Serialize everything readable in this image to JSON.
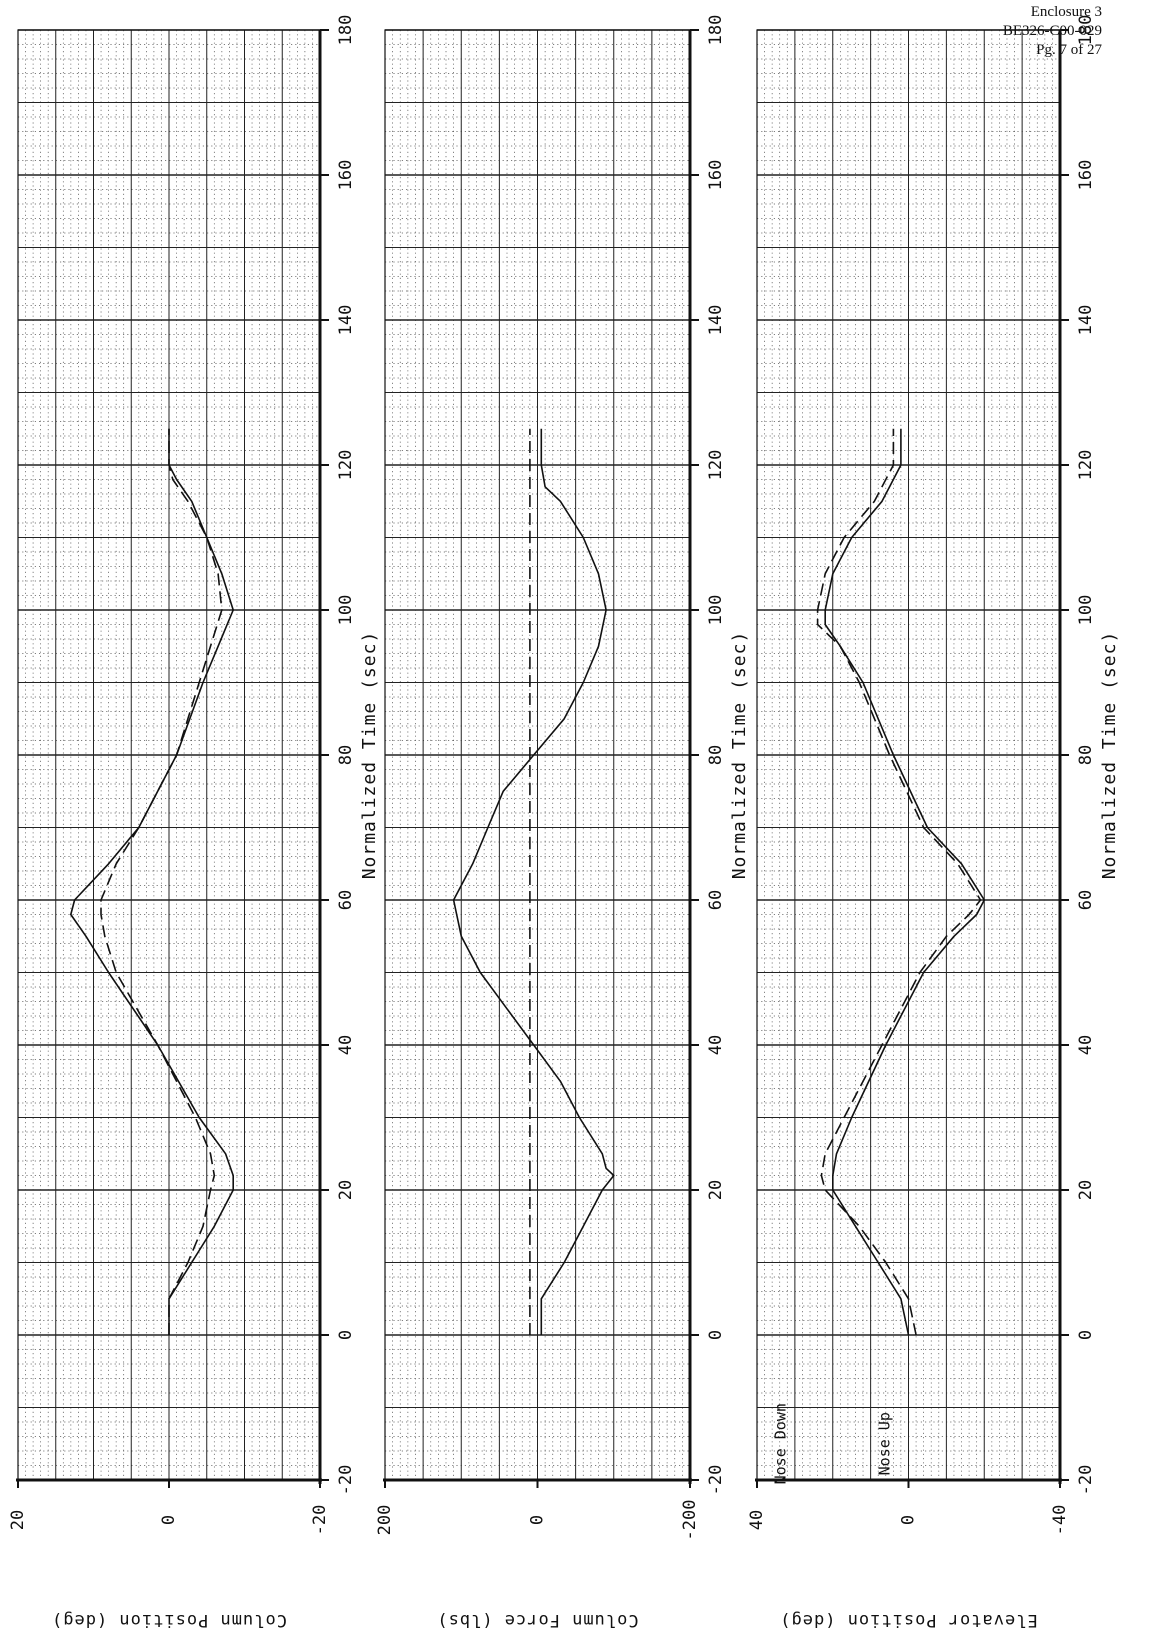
{
  "header": {
    "enclosure": "Enclosure 3",
    "doc_id": "BE326-C00-029",
    "page": "Pg. 7 of 27"
  },
  "xaxis_label": "Normalized Time (sec)",
  "colors": {
    "ink": "#111111",
    "grid_major": "#222222",
    "grid_minor": "#555555"
  },
  "chart_data": [
    {
      "type": "line",
      "title": "",
      "ylabel": "Column Position (deg)",
      "xlabel": "Normalized Time (sec)",
      "xlim": [
        -20,
        180
      ],
      "ylim": [
        -20,
        20
      ],
      "x_ticks": [
        -20,
        0,
        20,
        40,
        60,
        80,
        100,
        120,
        140,
        160,
        180
      ],
      "y_ticks": [
        20,
        0,
        -20
      ],
      "grid": true,
      "annotations": [],
      "series": [
        {
          "style": "solid",
          "x": [
            0,
            5,
            10,
            15,
            20,
            22,
            25,
            30,
            40,
            50,
            55,
            58,
            60,
            65,
            70,
            80,
            90,
            95,
            100,
            105,
            110,
            115,
            118,
            120,
            125
          ],
          "y": [
            0,
            0,
            -3,
            -6,
            -8.5,
            -8.5,
            -7.5,
            -4,
            1.5,
            8,
            11,
            13,
            12.5,
            8,
            4,
            -1,
            -4.5,
            -6.5,
            -8.5,
            -7,
            -5,
            -3,
            -1,
            0,
            0
          ]
        },
        {
          "style": "dashed",
          "x": [
            0,
            5,
            10,
            15,
            20,
            22,
            25,
            30,
            40,
            50,
            55,
            58,
            60,
            65,
            70,
            80,
            90,
            95,
            100,
            105,
            110,
            115,
            118,
            120,
            125
          ],
          "y": [
            0,
            0,
            -2.5,
            -4.5,
            -5.5,
            -6,
            -5.5,
            -3.5,
            1.5,
            7,
            8.5,
            9,
            9,
            7,
            4,
            -1,
            -4,
            -5.5,
            -7,
            -6.5,
            -5,
            -2.5,
            -0.5,
            0,
            0
          ]
        }
      ]
    },
    {
      "type": "line",
      "title": "",
      "ylabel": "Column Force (lbs)",
      "xlabel": "Normalized Time (sec)",
      "xlim": [
        -20,
        180
      ],
      "ylim": [
        -200,
        200
      ],
      "x_ticks": [
        -20,
        0,
        20,
        40,
        60,
        80,
        100,
        120,
        140,
        160,
        180
      ],
      "y_ticks": [
        200,
        0,
        -200
      ],
      "grid": true,
      "annotations": [],
      "series": [
        {
          "style": "solid",
          "x": [
            0,
            5,
            10,
            15,
            20,
            22,
            23,
            25,
            30,
            35,
            40,
            45,
            50,
            55,
            60,
            65,
            70,
            75,
            80,
            85,
            90,
            95,
            100,
            105,
            110,
            115,
            117,
            120,
            125
          ],
          "y": [
            -5,
            -5,
            -35,
            -60,
            -85,
            -100,
            -90,
            -85,
            -55,
            -30,
            5,
            40,
            75,
            100,
            110,
            85,
            65,
            45,
            5,
            -35,
            -60,
            -80,
            -90,
            -80,
            -60,
            -30,
            -10,
            -5,
            -5
          ]
        },
        {
          "style": "dashed",
          "x": [
            0,
            20,
            40,
            60,
            80,
            100,
            120,
            125
          ],
          "y": [
            10,
            10,
            10,
            10,
            10,
            10,
            10,
            10
          ]
        }
      ]
    },
    {
      "type": "line",
      "title": "",
      "ylabel": "Elevator Position (deg)",
      "xlabel": "Normalized Time (sec)",
      "xlim": [
        -20,
        180
      ],
      "ylim": [
        -40,
        40
      ],
      "x_ticks": [
        -20,
        0,
        20,
        40,
        60,
        80,
        100,
        120,
        140,
        160,
        180
      ],
      "y_ticks": [
        40,
        0,
        -40
      ],
      "grid": true,
      "annotations": [
        "Nose Down",
        "Nose Up"
      ],
      "series": [
        {
          "style": "solid",
          "x": [
            0,
            5,
            10,
            15,
            20,
            22,
            25,
            30,
            40,
            50,
            55,
            58,
            60,
            65,
            70,
            80,
            90,
            95,
            98,
            100,
            105,
            110,
            115,
            120,
            125
          ],
          "y": [
            0,
            2,
            8,
            14,
            20,
            20,
            19,
            15,
            6,
            -4,
            -12,
            -18,
            -20,
            -14,
            -5,
            4,
            12,
            18,
            22,
            22,
            20,
            15,
            7,
            2,
            2
          ]
        },
        {
          "style": "dashed",
          "x": [
            0,
            5,
            10,
            15,
            20,
            22,
            25,
            30,
            40,
            50,
            55,
            58,
            60,
            65,
            70,
            80,
            90,
            95,
            98,
            100,
            105,
            110,
            115,
            120,
            125
          ],
          "y": [
            -2,
            0,
            6,
            13,
            22,
            23,
            22,
            17,
            7,
            -3,
            -10,
            -16,
            -19,
            -13,
            -4,
            5,
            13,
            18,
            24,
            24,
            22,
            17,
            9,
            4,
            4
          ]
        }
      ]
    }
  ]
}
